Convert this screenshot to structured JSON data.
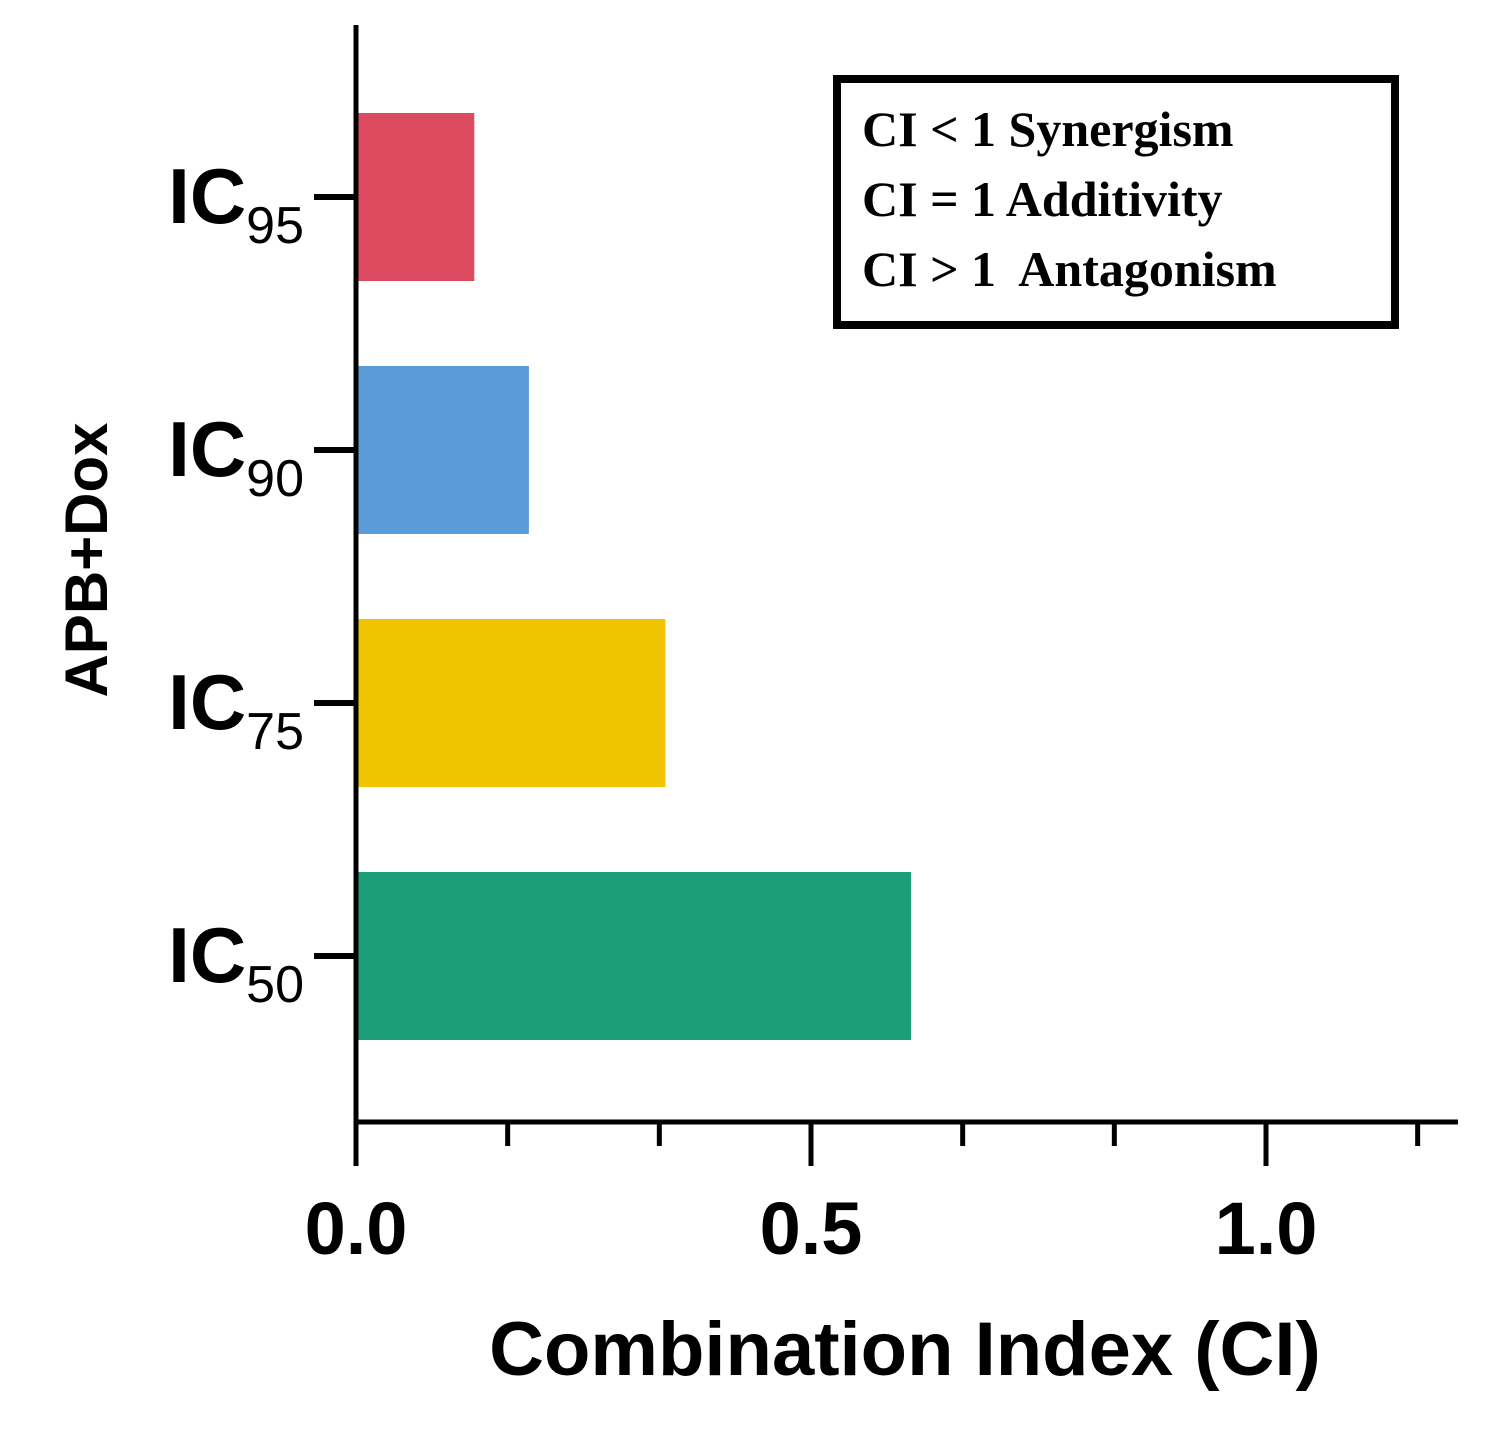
{
  "chart_data": {
    "type": "bar",
    "orientation": "horizontal",
    "ylabel": "APB+Dox",
    "xlabel": "Combination Index (CI)",
    "xlim": [
      0,
      1.2
    ],
    "x_ticks": [
      "0.0",
      "0.5",
      "1.0"
    ],
    "grid": false,
    "categories": [
      {
        "base": "IC",
        "sub": "95"
      },
      {
        "base": "IC",
        "sub": "90"
      },
      {
        "base": "IC",
        "sub": "75"
      },
      {
        "base": "IC",
        "sub": "50"
      }
    ],
    "values": [
      0.13,
      0.19,
      0.34,
      0.61
    ],
    "colors": [
      "#db4a5e",
      "#5c9bd9",
      "#f0c400",
      "#1e9e78"
    ],
    "legend": {
      "placement": "top-right",
      "lines": [
        "CI < 1 Synergism",
        "CI = 1 Additivity",
        "CI > 1  Antagonism"
      ]
    }
  }
}
